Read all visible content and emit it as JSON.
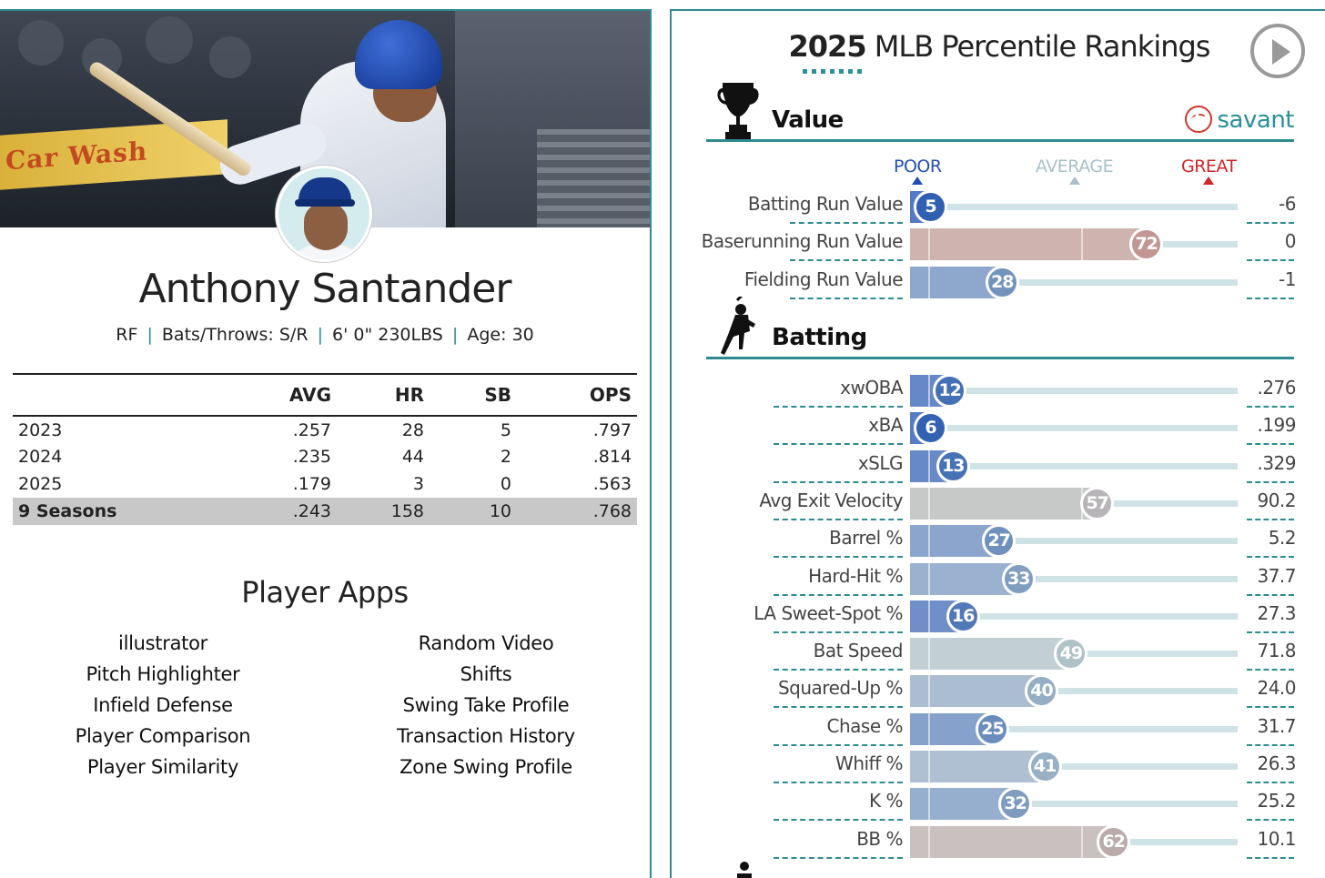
{
  "player": {
    "name": "Anthony Santander",
    "position": "RF",
    "bats_throws": "Bats/Throws: S/R",
    "height_weight": "6' 0\" 230LBS",
    "age": "Age: 30",
    "separator": "|"
  },
  "hero": {
    "banner_text": "Car Wash"
  },
  "stats": {
    "headers": [
      "",
      "AVG",
      "HR",
      "SB",
      "OPS"
    ],
    "rows": [
      {
        "season": "2023",
        "avg": ".257",
        "hr": "28",
        "sb": "5",
        "ops": ".797"
      },
      {
        "season": "2024",
        "avg": ".235",
        "hr": "44",
        "sb": "2",
        "ops": ".814"
      },
      {
        "season": "2025",
        "avg": ".179",
        "hr": "3",
        "sb": "0",
        "ops": ".563"
      },
      {
        "season": "9 Seasons",
        "avg": ".243",
        "hr": "158",
        "sb": "10",
        "ops": ".768",
        "total": true
      }
    ]
  },
  "apps": {
    "title": "Player Apps",
    "left": [
      "illustrator",
      "Pitch Highlighter",
      "Infield Defense",
      "Player Comparison",
      "Player Similarity"
    ],
    "right": [
      "Random Video",
      "Shifts",
      "Swing Take Profile",
      "Transaction History",
      "Zone Swing Profile"
    ]
  },
  "rankings": {
    "title_year": "2025",
    "title_rest": " MLB Percentile Rankings",
    "savant_label": "savant",
    "scale": {
      "poor": "POOR",
      "average": "AVERAGE",
      "great": "GREAT"
    },
    "colors": {
      "accent": "#2e8b92",
      "poor": "#2350b0",
      "great": "#d22525"
    },
    "sections": [
      {
        "label": "Value",
        "icon": "trophy-icon",
        "metrics": [
          {
            "name": "Batting Run Value",
            "percentile": 5,
            "value": "-6"
          },
          {
            "name": "Baserunning Run Value",
            "percentile": 72,
            "value": "0"
          },
          {
            "name": "Fielding Run Value",
            "percentile": 28,
            "value": "-1"
          }
        ]
      },
      {
        "label": "Batting",
        "icon": "batter-icon",
        "metrics": [
          {
            "name": "xwOBA",
            "percentile": 12,
            "value": ".276"
          },
          {
            "name": "xBA",
            "percentile": 6,
            "value": ".199"
          },
          {
            "name": "xSLG",
            "percentile": 13,
            "value": ".329"
          },
          {
            "name": "Avg Exit Velocity",
            "percentile": 57,
            "value": "90.2"
          },
          {
            "name": "Barrel %",
            "percentile": 27,
            "value": "5.2"
          },
          {
            "name": "Hard-Hit %",
            "percentile": 33,
            "value": "37.7"
          },
          {
            "name": "LA Sweet-Spot %",
            "percentile": 16,
            "value": "27.3"
          },
          {
            "name": "Bat Speed",
            "percentile": 49,
            "value": "71.8"
          },
          {
            "name": "Squared-Up %",
            "percentile": 40,
            "value": "24.0"
          },
          {
            "name": "Chase %",
            "percentile": 25,
            "value": "31.7"
          },
          {
            "name": "Whiff %",
            "percentile": 41,
            "value": "26.3"
          },
          {
            "name": "K %",
            "percentile": 32,
            "value": "25.2"
          },
          {
            "name": "BB %",
            "percentile": 62,
            "value": "10.1"
          }
        ]
      }
    ]
  }
}
